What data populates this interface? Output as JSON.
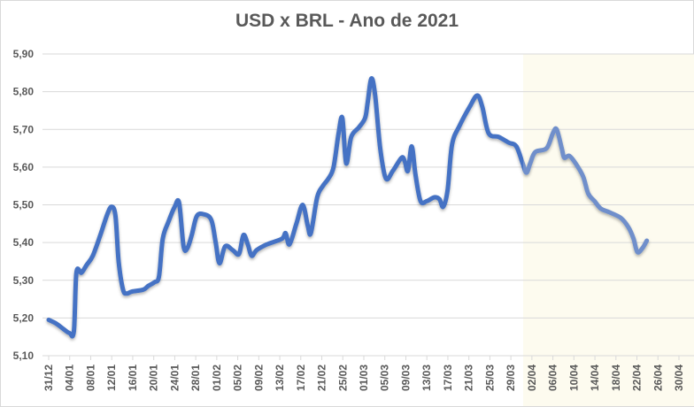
{
  "chart_data": {
    "type": "line",
    "title": "USD x BRL - Ano de 2021",
    "xlabel": "",
    "ylabel": "",
    "ylim": [
      5.1,
      5.9
    ],
    "yticks": [
      "5,10",
      "5,20",
      "5,30",
      "5,40",
      "5,50",
      "5,60",
      "5,70",
      "5,80",
      "5,90"
    ],
    "grid": true,
    "legend": null,
    "categories": [
      "31/12",
      "04/01",
      "08/01",
      "12/01",
      "16/01",
      "20/01",
      "24/01",
      "28/01",
      "01/02",
      "05/02",
      "09/02",
      "13/02",
      "17/02",
      "21/02",
      "25/02",
      "01/03",
      "05/03",
      "09/03",
      "13/03",
      "17/03",
      "21/03",
      "25/03",
      "29/03",
      "02/04",
      "06/04",
      "10/04",
      "14/04",
      "18/04",
      "22/04",
      "26/04",
      "30/04"
    ],
    "highlight_region": {
      "from_label": "02/04",
      "to_label": "30/04",
      "color": "#fdfbef"
    },
    "line_color": "#4472c4",
    "line_color_highlight": "#6f8fcb",
    "series": [
      {
        "name": "USD x BRL",
        "points": [
          [
            0.0,
            5.195
          ],
          [
            0.012,
            5.185
          ],
          [
            0.024,
            5.17
          ],
          [
            0.033,
            5.16
          ],
          [
            0.04,
            5.165
          ],
          [
            0.044,
            5.32
          ],
          [
            0.052,
            5.32
          ],
          [
            0.06,
            5.34
          ],
          [
            0.07,
            5.365
          ],
          [
            0.082,
            5.42
          ],
          [
            0.093,
            5.475
          ],
          [
            0.1,
            5.495
          ],
          [
            0.106,
            5.47
          ],
          [
            0.111,
            5.35
          ],
          [
            0.118,
            5.275
          ],
          [
            0.124,
            5.265
          ],
          [
            0.132,
            5.27
          ],
          [
            0.15,
            5.275
          ],
          [
            0.158,
            5.285
          ],
          [
            0.168,
            5.295
          ],
          [
            0.175,
            5.31
          ],
          [
            0.181,
            5.41
          ],
          [
            0.19,
            5.455
          ],
          [
            0.2,
            5.495
          ],
          [
            0.207,
            5.505
          ],
          [
            0.214,
            5.39
          ],
          [
            0.22,
            5.385
          ],
          [
            0.227,
            5.42
          ],
          [
            0.235,
            5.47
          ],
          [
            0.246,
            5.475
          ],
          [
            0.258,
            5.46
          ],
          [
            0.265,
            5.4
          ],
          [
            0.271,
            5.345
          ],
          [
            0.28,
            5.39
          ],
          [
            0.292,
            5.38
          ],
          [
            0.302,
            5.37
          ],
          [
            0.309,
            5.42
          ],
          [
            0.316,
            5.395
          ],
          [
            0.322,
            5.365
          ],
          [
            0.33,
            5.38
          ],
          [
            0.346,
            5.395
          ],
          [
            0.37,
            5.41
          ],
          [
            0.376,
            5.425
          ],
          [
            0.382,
            5.395
          ],
          [
            0.393,
            5.45
          ],
          [
            0.403,
            5.5
          ],
          [
            0.411,
            5.445
          ],
          [
            0.416,
            5.425
          ],
          [
            0.426,
            5.52
          ],
          [
            0.435,
            5.55
          ],
          [
            0.444,
            5.57
          ],
          [
            0.452,
            5.6
          ],
          [
            0.46,
            5.69
          ],
          [
            0.466,
            5.73
          ],
          [
            0.472,
            5.61
          ],
          [
            0.48,
            5.68
          ],
          [
            0.492,
            5.705
          ],
          [
            0.502,
            5.73
          ],
          [
            0.506,
            5.77
          ],
          [
            0.512,
            5.835
          ],
          [
            0.518,
            5.79
          ],
          [
            0.526,
            5.65
          ],
          [
            0.535,
            5.57
          ],
          [
            0.546,
            5.59
          ],
          [
            0.56,
            5.625
          ],
          [
            0.565,
            5.615
          ],
          [
            0.57,
            5.59
          ],
          [
            0.576,
            5.655
          ],
          [
            0.582,
            5.58
          ],
          [
            0.59,
            5.51
          ],
          [
            0.6,
            5.51
          ],
          [
            0.612,
            5.52
          ],
          [
            0.62,
            5.515
          ],
          [
            0.626,
            5.495
          ],
          [
            0.633,
            5.54
          ],
          [
            0.64,
            5.66
          ],
          [
            0.652,
            5.71
          ],
          [
            0.668,
            5.76
          ],
          [
            0.68,
            5.79
          ],
          [
            0.688,
            5.76
          ],
          [
            0.698,
            5.69
          ],
          [
            0.714,
            5.68
          ],
          [
            0.73,
            5.665
          ],
          [
            0.742,
            5.655
          ],
          [
            0.752,
            5.61
          ],
          [
            0.758,
            5.585
          ],
          [
            0.764,
            5.61
          ],
          [
            0.772,
            5.64
          ],
          [
            0.79,
            5.65
          ],
          [
            0.8,
            5.69
          ],
          [
            0.806,
            5.7
          ],
          [
            0.814,
            5.65
          ],
          [
            0.818,
            5.625
          ],
          [
            0.826,
            5.63
          ],
          [
            0.836,
            5.61
          ],
          [
            0.848,
            5.575
          ],
          [
            0.856,
            5.53
          ],
          [
            0.866,
            5.51
          ],
          [
            0.876,
            5.49
          ],
          [
            0.89,
            5.48
          ],
          [
            0.908,
            5.465
          ],
          [
            0.92,
            5.44
          ],
          [
            0.928,
            5.41
          ],
          [
            0.934,
            5.375
          ],
          [
            0.942,
            5.385
          ],
          [
            0.949,
            5.405
          ]
        ]
      }
    ]
  }
}
